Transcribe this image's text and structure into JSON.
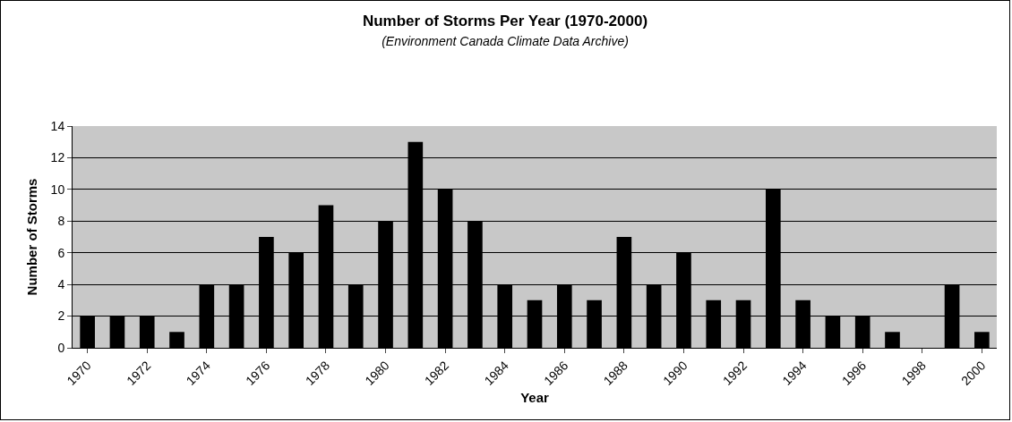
{
  "chart_data": {
    "type": "bar",
    "title": "Number of Storms Per Year (1970-2000)",
    "subtitle": "(Environment Canada Climate Data Archive)",
    "xlabel": "Year",
    "ylabel": "Number of Storms",
    "categories": [
      "1970",
      null,
      "1972",
      null,
      "1974",
      null,
      "1976",
      null,
      "1978",
      null,
      "1980",
      null,
      "1982",
      null,
      "1984",
      null,
      "1986",
      null,
      "1988",
      null,
      "1990",
      null,
      "1992",
      null,
      "1994",
      null,
      "1996",
      null,
      "1998",
      null,
      "2000"
    ],
    "values": [
      2,
      2,
      2,
      1,
      4,
      4,
      7,
      6,
      9,
      4,
      8,
      13,
      10,
      8,
      4,
      3,
      4,
      3,
      7,
      4,
      6,
      3,
      3,
      10,
      3,
      2,
      2,
      1,
      0,
      4,
      1
    ],
    "color": "#000000",
    "ylim": [
      0,
      14
    ],
    "yticks": [
      0,
      2,
      4,
      6,
      8,
      10,
      12,
      14
    ],
    "grid": "y"
  }
}
